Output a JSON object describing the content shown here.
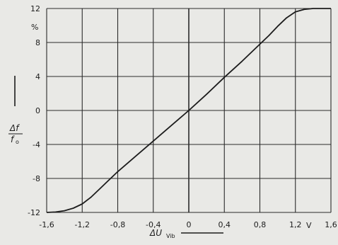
{
  "chart_data": {
    "type": "line",
    "title": "",
    "xlabel": "ΔU",
    "xlabel_subscript": "Vib",
    "ylabel_numerator": "Δf",
    "ylabel_denominator": "f",
    "ylabel_denominator_subscript": "o",
    "x_unit": "V",
    "y_unit": "%",
    "xlim": [
      -1.6,
      1.6
    ],
    "ylim": [
      -12,
      12
    ],
    "x_ticks": [
      -1.6,
      -1.2,
      -0.8,
      -0.4,
      0,
      0.4,
      0.8,
      1.2,
      1.6
    ],
    "x_tick_labels": [
      "-1,6",
      "-1,2",
      "-0,8",
      "-0,4",
      "0",
      "0,4",
      "0,8",
      "1,2",
      "1,6"
    ],
    "y_ticks": [
      -12,
      -8,
      -4,
      0,
      4,
      8,
      12
    ],
    "y_tick_labels": [
      "-12",
      "-8",
      "-4",
      "0",
      "4",
      "8",
      "12"
    ],
    "grid": true,
    "colors": {
      "line": "#1c1c1c",
      "grid": "#2a2a2a",
      "background": "#e9e9e6"
    },
    "series": [
      {
        "x": [
          -1.6,
          -1.5,
          -1.4,
          -1.3,
          -1.2,
          -1.1,
          -1.0,
          -0.9,
          -0.8,
          -0.6,
          -0.4,
          -0.2,
          0.0,
          0.2,
          0.4,
          0.6,
          0.8,
          0.9,
          1.0,
          1.1,
          1.2,
          1.3,
          1.4,
          1.5,
          1.6
        ],
        "y": [
          -12.0,
          -11.95,
          -11.8,
          -11.5,
          -11.0,
          -10.2,
          -9.2,
          -8.2,
          -7.2,
          -5.4,
          -3.6,
          -1.8,
          0.0,
          1.9,
          3.9,
          5.8,
          7.8,
          8.8,
          9.9,
          10.9,
          11.6,
          11.9,
          12.0,
          12.0,
          12.0
        ]
      }
    ]
  }
}
